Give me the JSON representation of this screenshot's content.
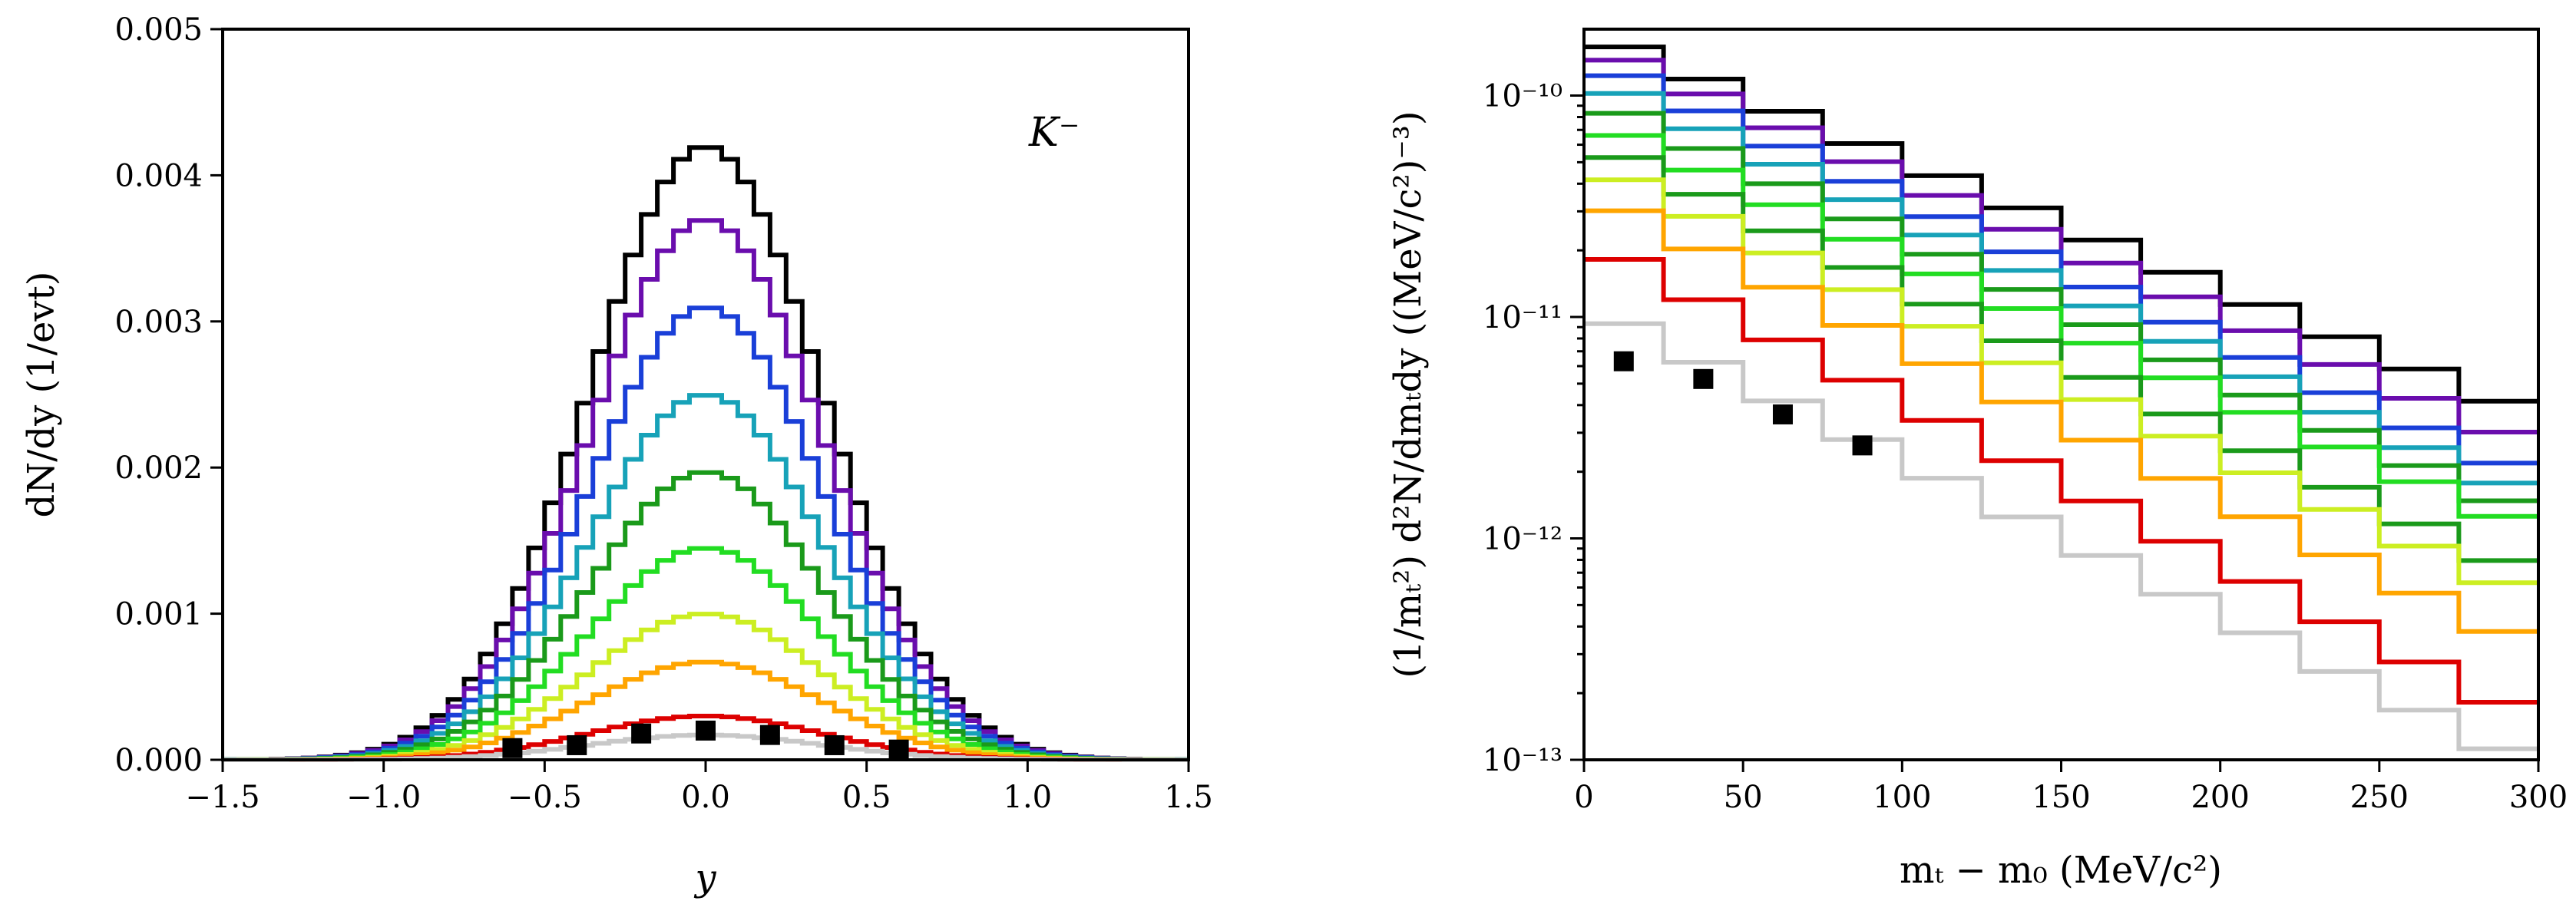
{
  "chart_data": [
    {
      "type": "line",
      "title": "",
      "annotation": "K⁻",
      "xlabel": "y",
      "ylabel": "dN/dy (1/evt)",
      "xlim": [
        -1.5,
        1.5
      ],
      "ylim": [
        0,
        0.005
      ],
      "xticks": [
        -1.5,
        -1.0,
        -0.5,
        0.0,
        0.5,
        1.0,
        1.5
      ],
      "xtick_labels": [
        "−1.5",
        "−1.0",
        "−0.5",
        "0.0",
        "0.5",
        "1.0",
        "1.5"
      ],
      "yticks": [
        0,
        0.001,
        0.002,
        0.003,
        0.004,
        0.005
      ],
      "ytick_labels": [
        "0.000",
        "0.001",
        "0.002",
        "0.003",
        "0.004",
        "0.005"
      ],
      "series": [
        {
          "name": "black",
          "color": "#000000",
          "peak": 0.0042,
          "sigma": 0.36
        },
        {
          "name": "purple",
          "color": "#6a0dad",
          "peak": 0.0037,
          "sigma": 0.36
        },
        {
          "name": "blue",
          "color": "#1a3fd8",
          "peak": 0.0031,
          "sigma": 0.36
        },
        {
          "name": "cyan",
          "color": "#17a2b8",
          "peak": 0.0025,
          "sigma": 0.36
        },
        {
          "name": "green",
          "color": "#1a9a1a",
          "peak": 0.00197,
          "sigma": 0.36
        },
        {
          "name": "light-green",
          "color": "#22dd22",
          "peak": 0.00145,
          "sigma": 0.36
        },
        {
          "name": "yellow-green",
          "color": "#ccee22",
          "peak": 0.001,
          "sigma": 0.36
        },
        {
          "name": "orange",
          "color": "#ffa500",
          "peak": 0.00067,
          "sigma": 0.36
        },
        {
          "name": "red",
          "color": "#dd0000",
          "peak": 0.0003,
          "sigma": 0.36
        },
        {
          "name": "gray",
          "color": "#c8c8c8",
          "peak": 0.00017,
          "sigma": 0.36
        }
      ],
      "points": {
        "name": "data",
        "x": [
          -0.6,
          -0.4,
          -0.2,
          0.0,
          0.2,
          0.4,
          0.6
        ],
        "y": [
          8e-05,
          0.0001,
          0.00018,
          0.0002,
          0.00017,
          0.0001,
          7e-05
        ]
      }
    },
    {
      "type": "line",
      "title": "",
      "xlabel": "mₜ − m₀ (MeV/c²)",
      "ylabel": "(1/mₜ²) d²N/dmₜdy ((MeV/c²)⁻³)",
      "xlim": [
        0,
        300
      ],
      "ylim_log10": [
        -13,
        -9.7
      ],
      "xticks": [
        0,
        50,
        100,
        150,
        200,
        250,
        300
      ],
      "xtick_labels": [
        "0",
        "50",
        "100",
        "150",
        "200",
        "250",
        "300"
      ],
      "yticks_log10": [
        -13,
        -12,
        -11,
        -10
      ],
      "ytick_labels": [
        "10⁻¹³",
        "10⁻¹²",
        "10⁻¹¹",
        "10⁻¹⁰"
      ],
      "bin_edges": [
        0,
        25,
        50,
        75,
        100,
        125,
        150,
        175,
        200,
        225,
        250,
        275,
        300
      ],
      "series": [
        {
          "name": "black",
          "color": "#000000",
          "start_log10": -9.78,
          "end_log10": -11.38
        },
        {
          "name": "purple",
          "color": "#6a0dad",
          "start_log10": -9.84,
          "end_log10": -11.52
        },
        {
          "name": "blue",
          "color": "#1a3fd8",
          "start_log10": -9.91,
          "end_log10": -11.66
        },
        {
          "name": "cyan",
          "color": "#17a2b8",
          "start_log10": -9.99,
          "end_log10": -11.75
        },
        {
          "name": "green",
          "color": "#1a9a1a",
          "start_log10": -10.08,
          "end_log10": -11.83
        },
        {
          "name": "light-green",
          "color": "#22dd22",
          "start_log10": -10.18,
          "end_log10": -11.9
        },
        {
          "name": "dark-green",
          "color": "#1a9a1a",
          "start_log10": -10.28,
          "end_log10": -12.1
        },
        {
          "name": "yellow-green",
          "color": "#ccee22",
          "start_log10": -10.38,
          "end_log10": -12.2
        },
        {
          "name": "orange",
          "color": "#ffa500",
          "start_log10": -10.52,
          "end_log10": -12.42
        },
        {
          "name": "red",
          "color": "#dd0000",
          "start_log10": -10.74,
          "end_log10": -12.74
        },
        {
          "name": "gray",
          "color": "#c8c8c8",
          "start_log10": -11.03,
          "end_log10": -12.95
        }
      ],
      "points": {
        "name": "data",
        "x": [
          12.5,
          37.5,
          62.5,
          87.5
        ],
        "y_log10": [
          -11.2,
          -11.28,
          -11.44,
          -11.58
        ]
      }
    }
  ]
}
